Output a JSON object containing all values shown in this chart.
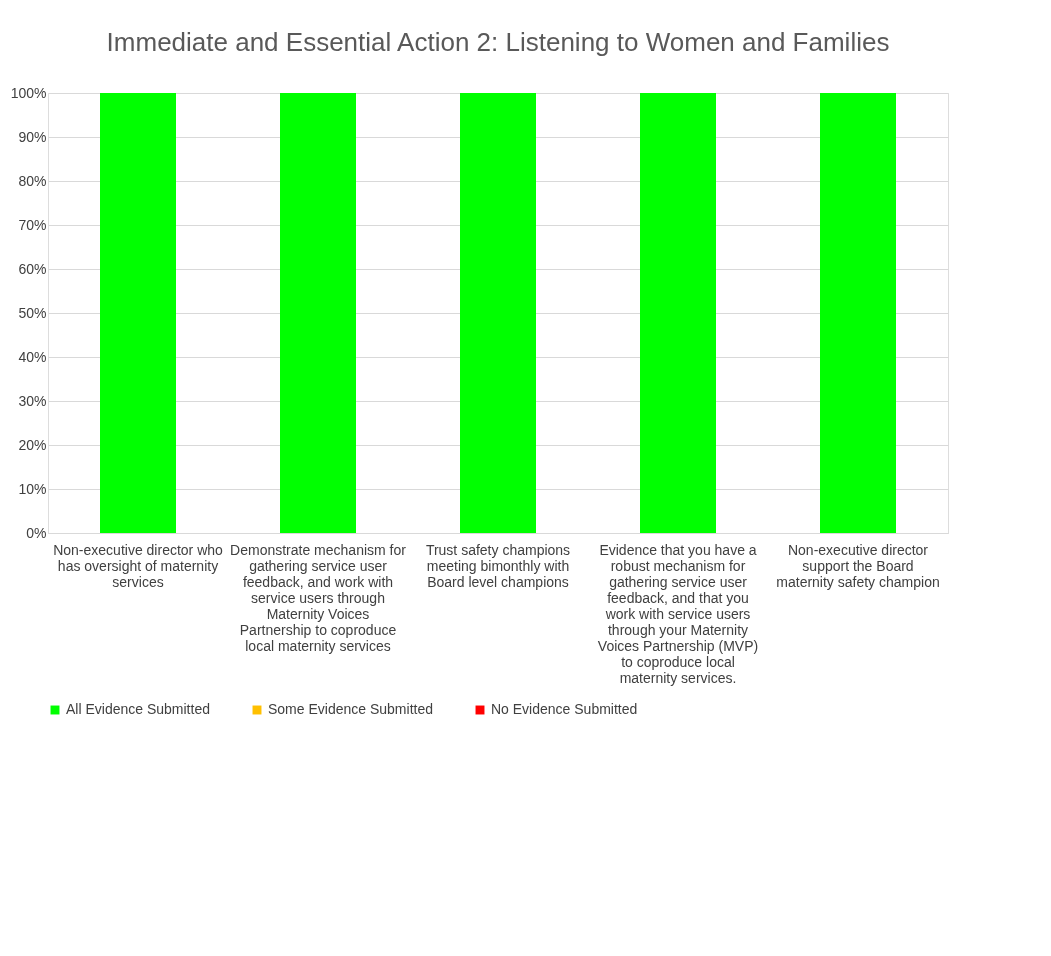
{
  "chart_data": {
    "type": "bar",
    "title": "Immediate and Essential Action 2: Listening to Women and Families",
    "categories": [
      "Non-executive director who has oversight of maternity services",
      "Demonstrate mechanism for gathering service user feedback, and work with service users through Maternity Voices Partnership to coproduce local maternity services",
      "Trust safety champions meeting bimonthly with Board level champions",
      "Evidence that you have a robust mechanism for gathering service user feedback, and that you work with service users through your Maternity Voices Partnership (MVP) to coproduce local maternity services.",
      "Non-executive director support the Board maternity safety champion"
    ],
    "series": [
      {
        "name": "All Evidence Submitted",
        "color": "#00ff00",
        "values": [
          100,
          100,
          100,
          100,
          100
        ]
      },
      {
        "name": "Some Evidence Submitted",
        "color": "#ffc000",
        "values": [
          0,
          0,
          0,
          0,
          0
        ]
      },
      {
        "name": "No Evidence Submitted",
        "color": "#ff0000",
        "values": [
          0,
          0,
          0,
          0,
          0
        ]
      }
    ],
    "stacked": true,
    "ylim": [
      0,
      100
    ],
    "yticks": [
      {
        "value": 0,
        "label": "0%"
      },
      {
        "value": 10,
        "label": "10%"
      },
      {
        "value": 20,
        "label": "20%"
      },
      {
        "value": 30,
        "label": "30%"
      },
      {
        "value": 40,
        "label": "40%"
      },
      {
        "value": 50,
        "label": "50%"
      },
      {
        "value": 60,
        "label": "60%"
      },
      {
        "value": 70,
        "label": "70%"
      },
      {
        "value": 80,
        "label": "80%"
      },
      {
        "value": 90,
        "label": "90%"
      },
      {
        "value": 100,
        "label": "100%"
      }
    ],
    "grid": "y",
    "legend": "bottom"
  }
}
